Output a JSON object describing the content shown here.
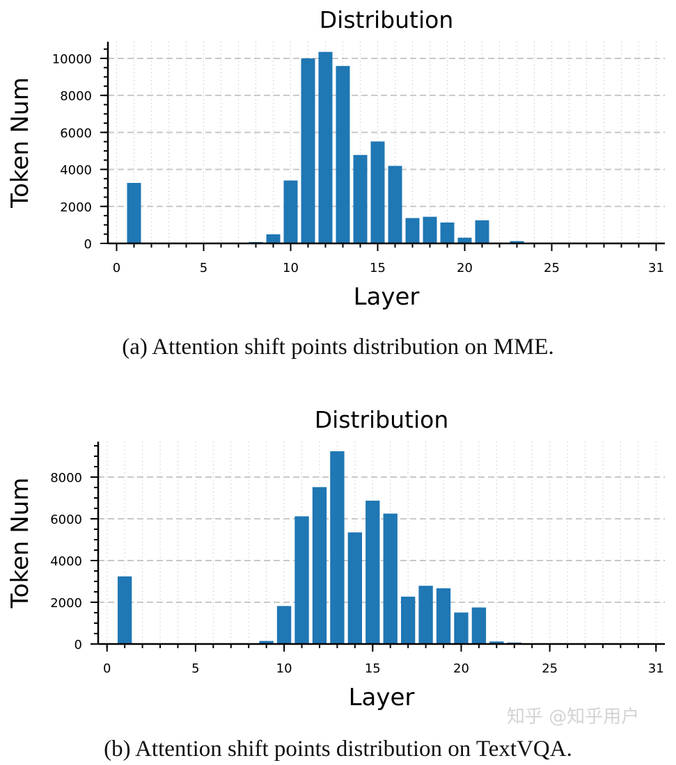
{
  "colors": {
    "bar": "#1f77b4",
    "grid": "#c8c8c8",
    "axis": "#000000"
  },
  "chart_data": [
    {
      "type": "bar",
      "title": "Distribution",
      "xlabel": "Layer",
      "ylabel": "Token Num",
      "xlim": [
        -0.5,
        31.5
      ],
      "ylim": [
        0,
        10900
      ],
      "xticks": [
        0,
        5,
        10,
        15,
        20,
        25,
        31
      ],
      "yticks": [
        0,
        2000,
        4000,
        6000,
        8000,
        10000
      ],
      "grid": true,
      "x": [
        1,
        8,
        9,
        10,
        11,
        12,
        13,
        14,
        15,
        16,
        17,
        18,
        19,
        20,
        21,
        22,
        23
      ],
      "values": [
        3270,
        75,
        490,
        3400,
        10000,
        10350,
        9590,
        4780,
        5510,
        4190,
        1370,
        1440,
        1130,
        310,
        1250,
        40,
        125
      ],
      "caption": "(a) Attention shift points distribution on MME."
    },
    {
      "type": "bar",
      "title": "Distribution",
      "xlabel": "Layer",
      "ylabel": "Token Num",
      "xlim": [
        -0.5,
        31.5
      ],
      "ylim": [
        0,
        9700
      ],
      "xticks": [
        0,
        5,
        10,
        15,
        20,
        25,
        31
      ],
      "yticks": [
        0,
        2000,
        4000,
        6000,
        8000
      ],
      "grid": true,
      "x": [
        1,
        9,
        10,
        11,
        12,
        13,
        14,
        15,
        16,
        17,
        18,
        19,
        20,
        21,
        22,
        23
      ],
      "values": [
        3240,
        145,
        1820,
        6120,
        7520,
        9240,
        5350,
        6870,
        6250,
        2270,
        2790,
        2670,
        1510,
        1750,
        120,
        70
      ],
      "caption": "(b) Attention shift points distribution on TextVQA."
    }
  ],
  "watermark": "知乎 @知乎用户"
}
